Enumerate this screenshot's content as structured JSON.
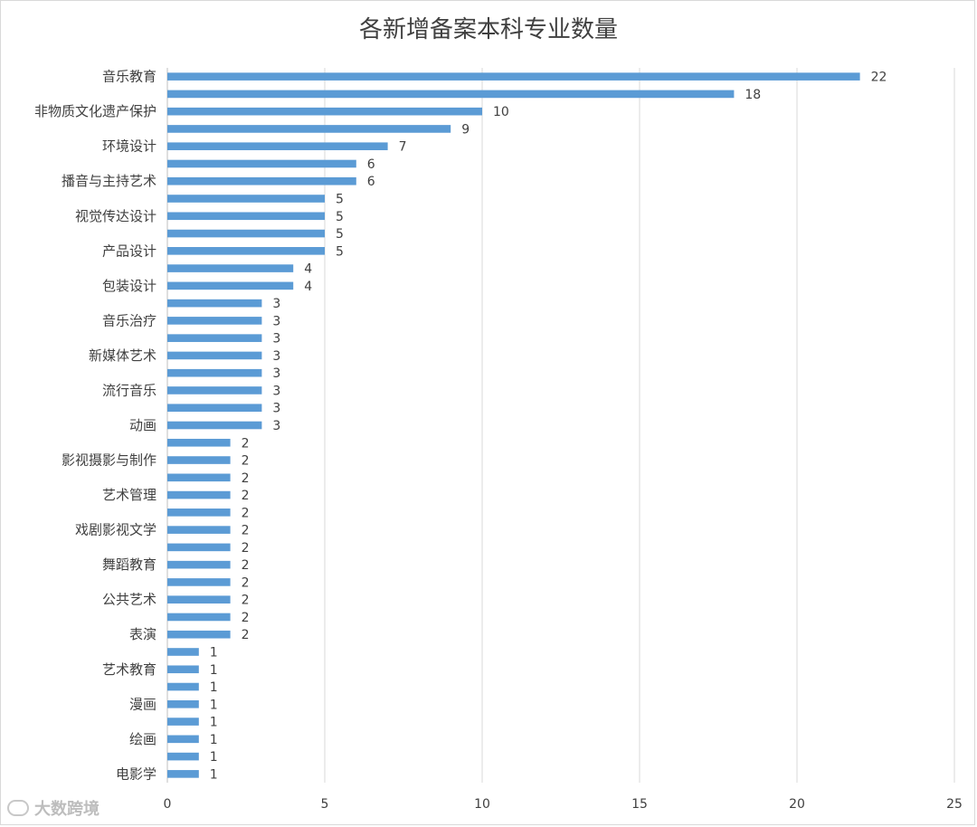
{
  "chart_data": {
    "type": "bar",
    "orientation": "horizontal",
    "title": "各新增备案本科专业数量",
    "categories": [
      "音乐教育",
      "",
      "非物质文化遗产保护",
      "",
      "环境设计",
      "",
      "播音与主持艺术",
      "",
      "视觉传达设计",
      "",
      "产品设计",
      "",
      "包装设计",
      "",
      "音乐治疗",
      "",
      "新媒体艺术",
      "",
      "流行音乐",
      "",
      "动画",
      "",
      "影视摄影与制作",
      "",
      "艺术管理",
      "",
      "戏剧影视文学",
      "",
      "舞蹈教育",
      "",
      "公共艺术",
      "",
      "表演",
      "",
      "艺术教育",
      "",
      "漫画",
      "",
      "绘画",
      "",
      "电影学"
    ],
    "values": [
      22,
      18,
      10,
      9,
      7,
      6,
      6,
      5,
      5,
      5,
      5,
      4,
      4,
      3,
      3,
      3,
      3,
      3,
      3,
      3,
      3,
      2,
      2,
      2,
      2,
      2,
      2,
      2,
      2,
      2,
      2,
      2,
      2,
      1,
      1,
      1,
      1,
      1,
      1,
      1,
      1
    ],
    "xlim": [
      0,
      25
    ],
    "xticks": [
      0,
      5,
      10,
      15,
      20,
      25
    ],
    "grid": true,
    "legend": "none",
    "bar_color": "#5b9bd5"
  },
  "watermark": {
    "text": "大数跨境",
    "icon": "brand-logo-icon"
  }
}
